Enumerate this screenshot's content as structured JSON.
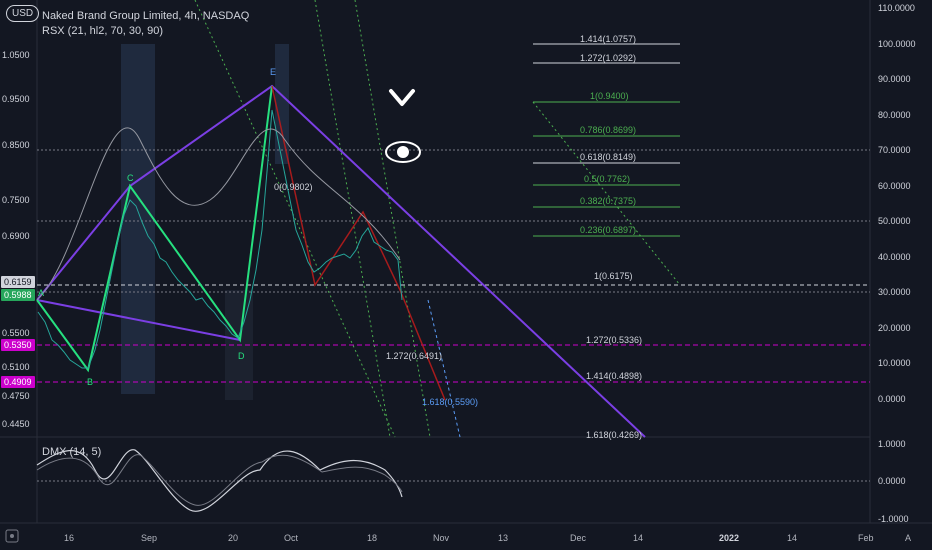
{
  "header": {
    "currency_button": "USD",
    "symbol_line": "Naked Brand Group Limited, 4h, NASDAQ",
    "indicator_main": "RSX (21, hl2, 70, 30, 90)",
    "indicator_sub": "DMX (14, 5)"
  },
  "left_axis": [
    "1.0500",
    "0.9500",
    "0.8500",
    "0.7500",
    "0.6900",
    "0.5500",
    "0.5100",
    "0.4750",
    "0.4450"
  ],
  "right_axis": [
    "110.0000",
    "100.0000",
    "90.0000",
    "80.0000",
    "70.0000",
    "60.0000",
    "50.0000",
    "40.0000",
    "30.0000",
    "20.0000",
    "10.0000",
    "0.0000"
  ],
  "sub_axis": [
    "1.0000",
    "0.0000",
    "-1.0000"
  ],
  "badges": [
    {
      "text": "0.6159",
      "bg": "#d1d4dc",
      "fg": "#131722"
    },
    {
      "text": "0.5988",
      "bg": "#26a65b",
      "fg": "#ffffff"
    },
    {
      "text": "0.5350",
      "bg": "#cc00cc",
      "fg": "#ffffff"
    },
    {
      "text": "0.4909",
      "bg": "#cc00cc",
      "fg": "#ffffff"
    }
  ],
  "x_axis": [
    "16",
    "Sep",
    "20",
    "Oct",
    "18",
    "Nov",
    "13",
    "Dec",
    "14",
    "2022",
    "14",
    "Feb"
  ],
  "points": [
    "A",
    "B",
    "C",
    "D",
    "E"
  ],
  "fib_levels": [
    {
      "text": "1.414(1.0757)",
      "color": "#d1d4dc"
    },
    {
      "text": "1.272(1.0292)",
      "color": "#d1d4dc"
    },
    {
      "text": "1(0.9400)",
      "color": "#4caf50"
    },
    {
      "text": "0.786(0.8699)",
      "color": "#4caf50"
    },
    {
      "text": "0.618(0.8149)",
      "color": "#d1d4dc"
    },
    {
      "text": "0.5(0.7762)",
      "color": "#4caf50"
    },
    {
      "text": "0.382(0.7375)",
      "color": "#4caf50"
    },
    {
      "text": "0.236(0.6897)",
      "color": "#4caf50"
    },
    {
      "text": "1(0.6175)",
      "color": "#d1d4dc"
    },
    {
      "text": "1.272(0.5336)",
      "color": "#d1d4dc"
    },
    {
      "text": "1.414(0.4898)",
      "color": "#d1d4dc"
    },
    {
      "text": "1.618(0.4269)",
      "color": "#d1d4dc"
    },
    {
      "text": "0(0.9802)",
      "color": "#d1d4dc"
    },
    {
      "text": "1.272(0.6491)",
      "color": "#d1d4dc"
    },
    {
      "text": "1.618(0.5590)",
      "color": "#5b9cf6"
    }
  ],
  "bottom_left_icon": "tradingview-logo-icon",
  "bottom_right_label": "A",
  "colors": {
    "background": "#131722",
    "pattern": "#7b3fe4",
    "leg": "#26e07f",
    "up": "#26a69a",
    "down": "#ef5350",
    "fib_green": "#4caf50",
    "magenta": "#cc00cc"
  }
}
